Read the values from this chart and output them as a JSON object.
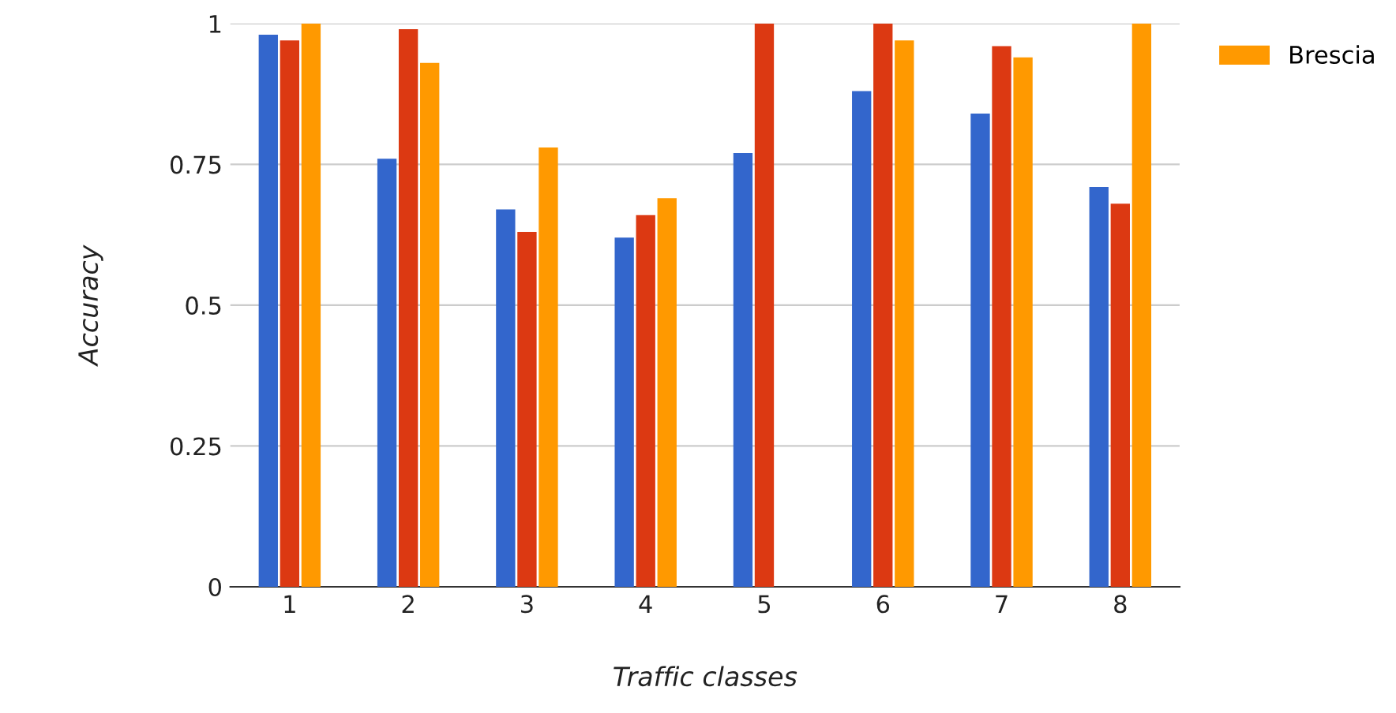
{
  "chart_data": {
    "type": "bar",
    "xlabel": "Traffic classes",
    "ylabel": "Accuracy",
    "categories": [
      "1",
      "2",
      "3",
      "4",
      "5",
      "6",
      "7",
      "8"
    ],
    "series": [
      {
        "color": "#3366cc",
        "values": [
          0.98,
          0.76,
          0.67,
          0.62,
          0.77,
          0.88,
          0.84,
          0.71
        ]
      },
      {
        "color": "#dc3912",
        "values": [
          0.97,
          0.99,
          0.63,
          0.66,
          1,
          1,
          0.96,
          0.68
        ]
      },
      {
        "name": "Brescia",
        "color": "#ff9900",
        "values": [
          1,
          0.93,
          0.78,
          0.69,
          null,
          0.97,
          0.94,
          1
        ]
      }
    ],
    "ylim": [
      0,
      1
    ],
    "yticks": [
      0,
      0.25,
      0.5,
      0.75,
      1
    ],
    "grid": "y",
    "legend": "top right"
  }
}
